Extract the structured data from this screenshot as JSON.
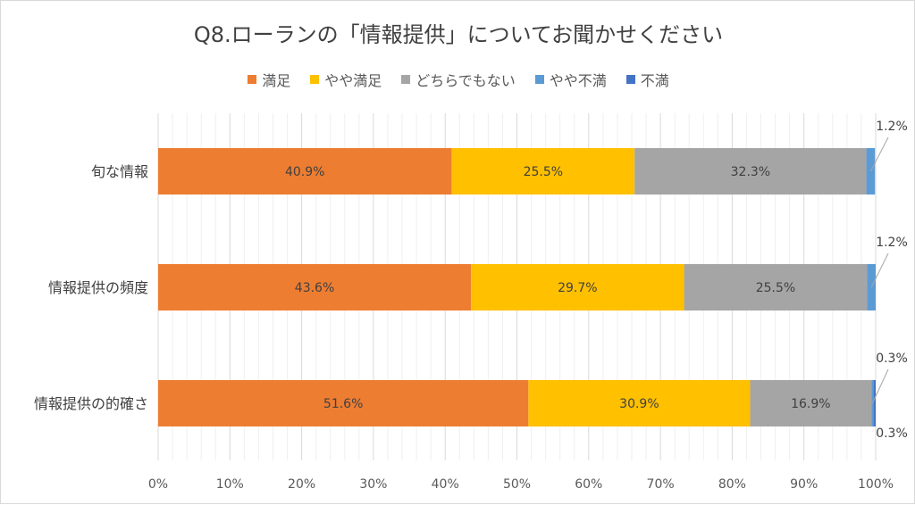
{
  "title": "Q8.ローランの「情報提供」についてお聞かせください",
  "legend": [
    {
      "label": "満足",
      "color": "#ED7D31"
    },
    {
      "label": "やや満足",
      "color": "#FFC000"
    },
    {
      "label": "どちらでもない",
      "color": "#A5A5A5"
    },
    {
      "label": "やや不満",
      "color": "#5B9BD5"
    },
    {
      "label": "不満",
      "color": "#4472C4"
    }
  ],
  "chart_data": {
    "type": "bar",
    "orientation": "horizontal",
    "stacked": "100%",
    "title": "Q8.ローランの「情報提供」についてお聞かせください",
    "categories": [
      "旬な情報",
      "情報提供の頻度",
      "情報提供の的確さ"
    ],
    "series": [
      {
        "name": "満足",
        "color": "#ED7D31",
        "values": [
          40.9,
          43.6,
          51.6
        ]
      },
      {
        "name": "やや満足",
        "color": "#FFC000",
        "values": [
          25.5,
          29.7,
          30.9
        ]
      },
      {
        "name": "どちらでもない",
        "color": "#A5A5A5",
        "values": [
          32.3,
          25.5,
          16.9
        ]
      },
      {
        "name": "やや不満",
        "color": "#5B9BD5",
        "values": [
          1.2,
          1.2,
          0.3
        ]
      },
      {
        "name": "不満",
        "color": "#4472C4",
        "values": [
          0.0,
          0.0,
          0.3
        ]
      }
    ],
    "x_ticks": [
      "0%",
      "10%",
      "20%",
      "30%",
      "40%",
      "50%",
      "60%",
      "70%",
      "80%",
      "90%",
      "100%"
    ],
    "xlim": [
      0,
      100
    ],
    "legend_position": "top",
    "grid": true,
    "data_labels": [
      [
        "40.9%",
        "25.5%",
        "32.3%",
        "1.2%",
        ""
      ],
      [
        "43.6%",
        "29.7%",
        "25.5%",
        "1.2%",
        ""
      ],
      [
        "51.6%",
        "30.9%",
        "16.9%",
        "0.3%",
        "0.3%"
      ]
    ]
  }
}
